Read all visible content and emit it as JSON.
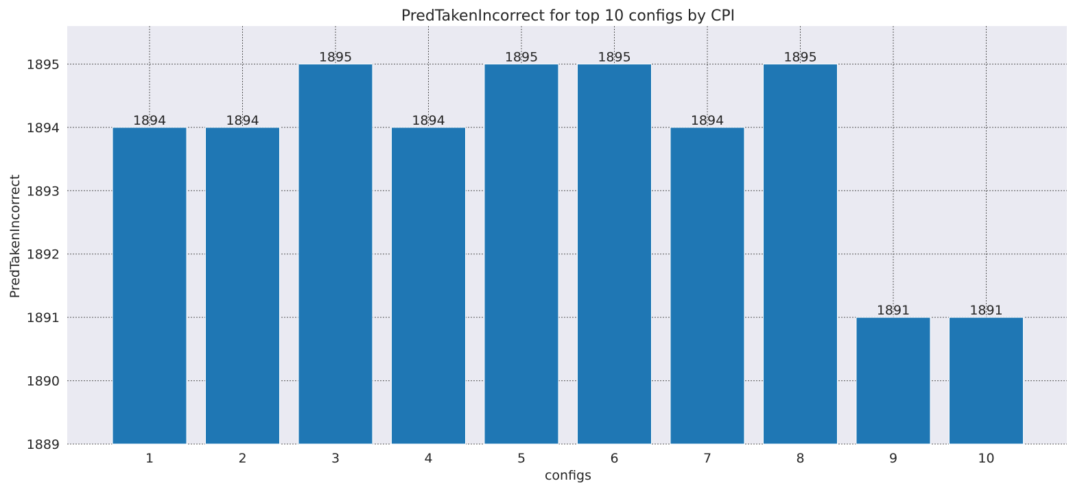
{
  "chart_data": {
    "type": "bar",
    "title": "PredTakenIncorrect for top 10 configs by CPI",
    "xlabel": "configs",
    "ylabel": "PredTakenIncorrect",
    "categories": [
      "1",
      "2",
      "3",
      "4",
      "5",
      "6",
      "7",
      "8",
      "9",
      "10"
    ],
    "values": [
      1894,
      1894,
      1895,
      1894,
      1895,
      1895,
      1894,
      1895,
      1891,
      1891
    ],
    "data_labels": [
      "1894",
      "1894",
      "1895",
      "1894",
      "1895",
      "1895",
      "1894",
      "1895",
      "1891",
      "1891"
    ],
    "ylim": [
      1889,
      1895.6
    ],
    "yticks": [
      1889,
      1890,
      1891,
      1892,
      1893,
      1894,
      1895
    ],
    "ytick_labels": [
      "1889",
      "1890",
      "1891",
      "1892",
      "1893",
      "1894",
      "1895"
    ],
    "grid": true,
    "legend": "none",
    "colors": {
      "bar": "#1f77b4",
      "plot_background": "#eaeaf2",
      "grid": "#555555",
      "text": "#262626"
    }
  }
}
